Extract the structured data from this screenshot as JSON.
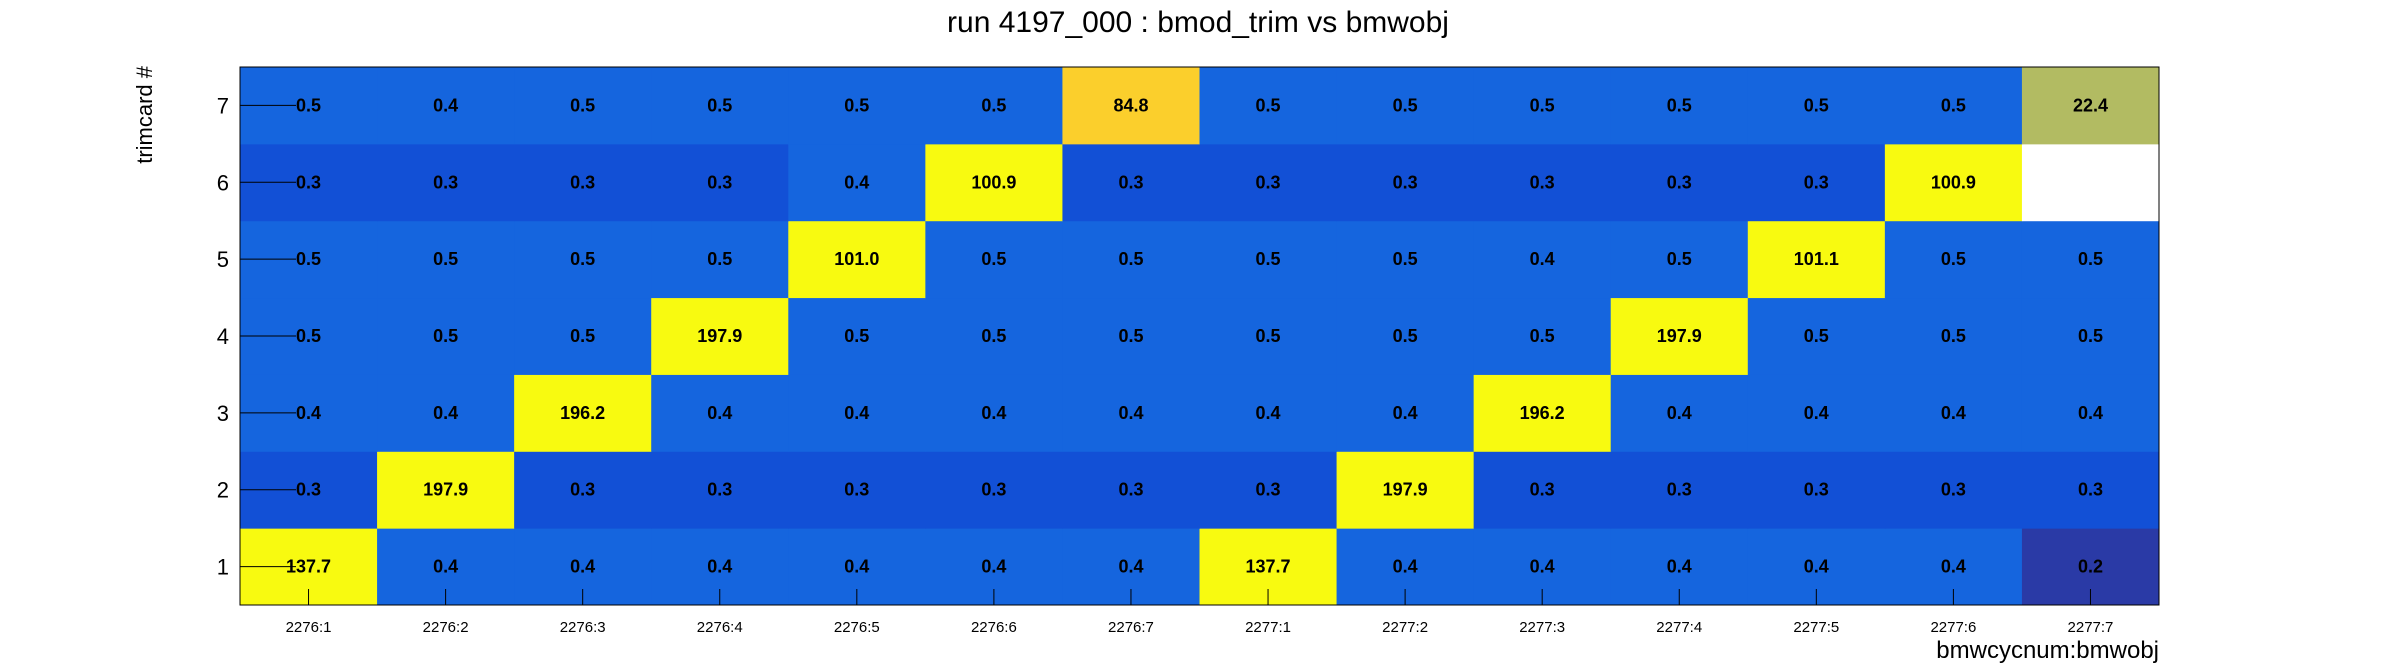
{
  "chart_data": {
    "type": "heatmap",
    "title": "run 4197_000 : bmod_trim vs bmwobj",
    "xlabel": "bmwcycnum:bmwobj",
    "ylabel": "trimcard #",
    "x_categories": [
      "2276:1",
      "2276:2",
      "2276:3",
      "2276:4",
      "2276:5",
      "2276:6",
      "2276:7",
      "2277:1",
      "2277:2",
      "2277:3",
      "2277:4",
      "2277:5",
      "2277:6",
      "2277:7"
    ],
    "y_categories": [
      "1",
      "2",
      "3",
      "4",
      "5",
      "6",
      "7"
    ],
    "values": [
      [
        137.7,
        0.4,
        0.4,
        0.4,
        0.4,
        0.4,
        0.4,
        137.7,
        0.4,
        0.4,
        0.4,
        0.4,
        0.4,
        0.2
      ],
      [
        0.3,
        197.9,
        0.3,
        0.3,
        0.3,
        0.3,
        0.3,
        0.3,
        197.9,
        0.3,
        0.3,
        0.3,
        0.3,
        0.3
      ],
      [
        0.4,
        0.4,
        196.2,
        0.4,
        0.4,
        0.4,
        0.4,
        0.4,
        0.4,
        196.2,
        0.4,
        0.4,
        0.4,
        0.4
      ],
      [
        0.5,
        0.5,
        0.5,
        197.9,
        0.5,
        0.5,
        0.5,
        0.5,
        0.5,
        0.5,
        197.9,
        0.5,
        0.5,
        0.5
      ],
      [
        0.5,
        0.5,
        0.5,
        0.5,
        101.0,
        0.5,
        0.5,
        0.5,
        0.5,
        0.4,
        0.5,
        101.1,
        0.5,
        0.5
      ],
      [
        0.3,
        0.3,
        0.3,
        0.3,
        0.4,
        100.9,
        0.3,
        0.3,
        0.3,
        0.3,
        0.3,
        0.3,
        100.9,
        null
      ],
      [
        0.5,
        0.4,
        0.5,
        0.5,
        0.5,
        0.5,
        84.8,
        0.5,
        0.5,
        0.5,
        0.5,
        0.5,
        0.5,
        22.4
      ]
    ],
    "value_labels": [
      [
        "137.7",
        "0.4",
        "0.4",
        "0.4",
        "0.4",
        "0.4",
        "0.4",
        "137.7",
        "0.4",
        "0.4",
        "0.4",
        "0.4",
        "0.4",
        "0.2"
      ],
      [
        "0.3",
        "197.9",
        "0.3",
        "0.3",
        "0.3",
        "0.3",
        "0.3",
        "0.3",
        "197.9",
        "0.3",
        "0.3",
        "0.3",
        "0.3",
        "0.3"
      ],
      [
        "0.4",
        "0.4",
        "196.2",
        "0.4",
        "0.4",
        "0.4",
        "0.4",
        "0.4",
        "0.4",
        "196.2",
        "0.4",
        "0.4",
        "0.4",
        "0.4"
      ],
      [
        "0.5",
        "0.5",
        "0.5",
        "197.9",
        "0.5",
        "0.5",
        "0.5",
        "0.5",
        "0.5",
        "0.5",
        "197.9",
        "0.5",
        "0.5",
        "0.5"
      ],
      [
        "0.5",
        "0.5",
        "0.5",
        "0.5",
        "101.0",
        "0.5",
        "0.5",
        "0.5",
        "0.5",
        "0.4",
        "0.5",
        "101.1",
        "0.5",
        "0.5"
      ],
      [
        "0.3",
        "0.3",
        "0.3",
        "0.3",
        "0.4",
        "100.9",
        "0.3",
        "0.3",
        "0.3",
        "0.3",
        "0.3",
        "0.3",
        "100.9",
        ""
      ],
      [
        "0.5",
        "0.4",
        "0.5",
        "0.5",
        "0.5",
        "0.5",
        "84.8",
        "0.5",
        "0.5",
        "0.5",
        "0.5",
        "0.5",
        "0.5",
        "22.4"
      ]
    ],
    "colors": {
      "min": "#2a3aa6",
      "low": "#1250d6",
      "base": "#1565de",
      "mid": "#b2bb62",
      "high": "#fbcf2c",
      "max": "#f8fa10",
      "empty": "#ffffff"
    },
    "grid": false,
    "legend": "none"
  }
}
